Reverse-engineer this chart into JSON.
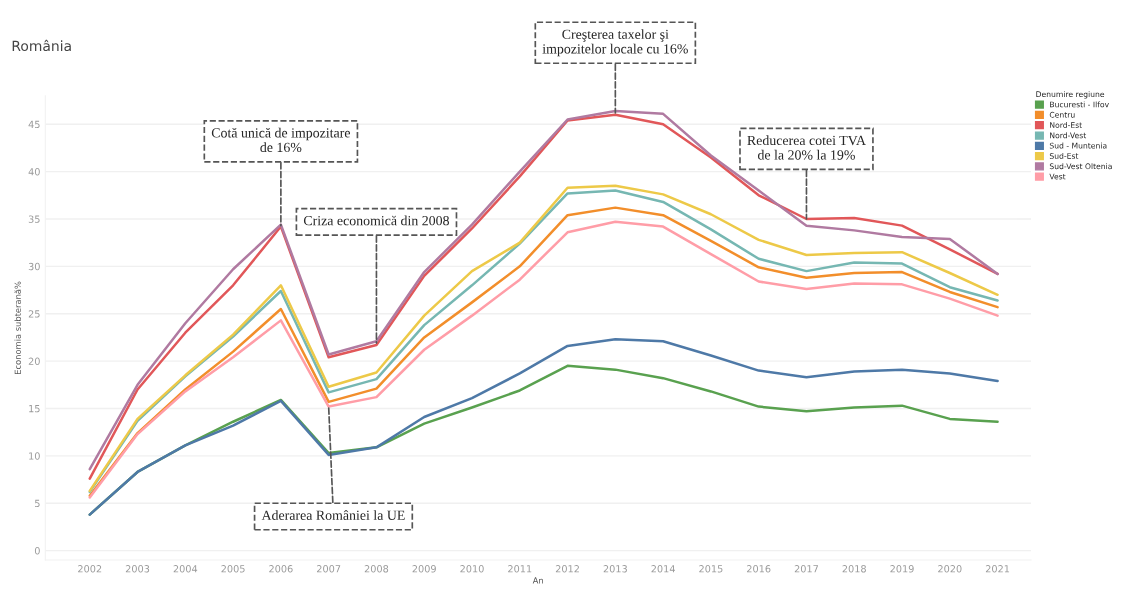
{
  "chart_data": {
    "type": "line",
    "title": "România",
    "xlabel": "An",
    "ylabel": "Economia subterană%",
    "legend_title": "Denumire regiune",
    "categories": [
      "2002",
      "2003",
      "2004",
      "2005",
      "2006",
      "2007",
      "2008",
      "2009",
      "2010",
      "2011",
      "2012",
      "2013",
      "2014",
      "2015",
      "2016",
      "2017",
      "2018",
      "2019",
      "2020",
      "2021"
    ],
    "series": [
      {
        "name": "Bucuresti - Ilfov",
        "color": "#59a14f",
        "values": [
          3.8,
          8.3,
          11.1,
          13.6,
          15.9,
          10.3,
          10.9,
          13.4,
          15.1,
          16.9,
          19.5,
          19.1,
          18.2,
          16.8,
          15.2,
          14.7,
          15.1,
          15.3,
          13.9,
          13.6
        ]
      },
      {
        "name": "Centru",
        "color": "#f28e2b",
        "values": [
          5.8,
          12.4,
          17.0,
          21.0,
          25.5,
          15.7,
          17.1,
          22.5,
          26.2,
          30.0,
          35.4,
          36.2,
          35.4,
          32.7,
          29.9,
          28.8,
          29.3,
          29.4,
          27.3,
          25.7
        ]
      },
      {
        "name": "Nord-Est",
        "color": "#e15759",
        "values": [
          7.6,
          17.0,
          23.0,
          28.0,
          34.2,
          20.4,
          21.7,
          29.0,
          34.0,
          39.5,
          45.4,
          46.0,
          45.0,
          41.5,
          37.5,
          35.0,
          35.1,
          34.3,
          31.8,
          29.2
        ]
      },
      {
        "name": "Nord-Vest",
        "color": "#76b7b2",
        "values": [
          6.2,
          13.7,
          18.4,
          22.6,
          27.4,
          16.7,
          18.1,
          23.8,
          28.0,
          32.4,
          37.7,
          38.0,
          36.8,
          33.9,
          30.8,
          29.5,
          30.4,
          30.3,
          27.8,
          26.4
        ]
      },
      {
        "name": "Sud - Muntenia",
        "color": "#4e79a7",
        "values": [
          3.8,
          8.3,
          11.1,
          13.2,
          15.8,
          10.1,
          10.9,
          14.1,
          16.1,
          18.7,
          21.6,
          22.3,
          22.1,
          20.6,
          19.0,
          18.3,
          18.9,
          19.1,
          18.7,
          17.9
        ]
      },
      {
        "name": "Sud-Est",
        "color": "#edc948",
        "values": [
          6.3,
          13.9,
          18.5,
          22.8,
          28.0,
          17.3,
          18.8,
          24.8,
          29.5,
          32.5,
          38.3,
          38.5,
          37.6,
          35.5,
          32.8,
          31.2,
          31.4,
          31.5,
          29.3,
          27.0
        ]
      },
      {
        "name": "Sud-Vest Oltenia",
        "color": "#b07aa1",
        "values": [
          8.6,
          17.5,
          24.0,
          29.7,
          34.4,
          20.7,
          22.1,
          29.4,
          34.4,
          40.0,
          45.5,
          46.4,
          46.1,
          41.7,
          38.0,
          34.3,
          33.8,
          33.1,
          32.9,
          29.2
        ]
      },
      {
        "name": "Vest",
        "color": "#ff9da7",
        "values": [
          5.6,
          12.3,
          16.8,
          20.4,
          24.3,
          15.2,
          16.2,
          21.2,
          24.8,
          28.6,
          33.6,
          34.7,
          34.2,
          31.3,
          28.4,
          27.6,
          28.2,
          28.1,
          26.6,
          24.8
        ]
      }
    ],
    "ylim": [
      -1,
      48
    ],
    "yticks": [
      0,
      5,
      10,
      15,
      20,
      25,
      30,
      35,
      40,
      45
    ],
    "grid": "y",
    "legend": "top right",
    "marker": "none",
    "line_style": "solid",
    "annotations": [
      {
        "text": "Cotă unică de impozitare\nde 16%",
        "x": "2006",
        "y": 34.3
      },
      {
        "text": "Criza economică din 2008",
        "x": "2008",
        "y": 21.9
      },
      {
        "text": "Aderarea României la UE",
        "x": "2007",
        "y": 15.2
      },
      {
        "text": "Creşterea taxelor şi\nimpozitelor locale cu 16%",
        "x": "2013",
        "y": 46.2
      },
      {
        "text": "Reducerea cotei TVA\nde la 20% la 19%",
        "x": "2017",
        "y": 35.0
      }
    ]
  }
}
